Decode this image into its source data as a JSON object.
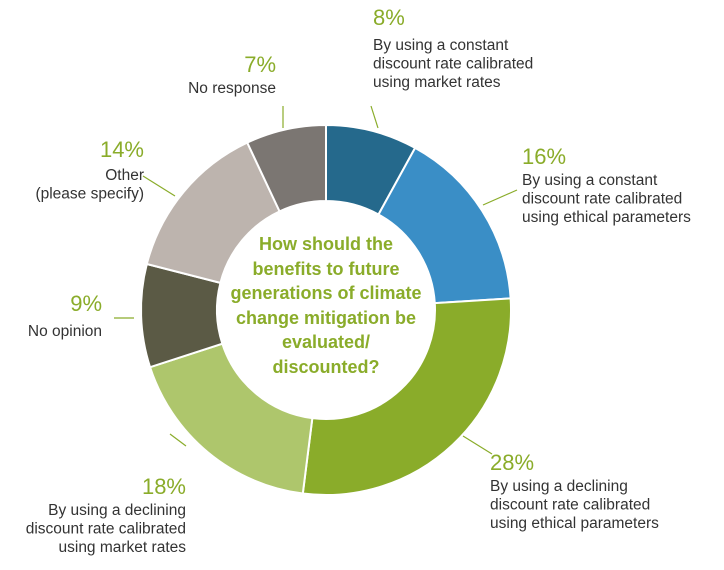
{
  "chart_data": {
    "type": "pie",
    "donut": true,
    "center_title": "How should the benefits to future generations of climate change mitigation be evaluated/ discounted?",
    "categories": [
      "By using a constant discount rate calibrated using market rates",
      "By using a constant discount rate calibrated using ethical parameters",
      "By using a declining discount rate calibrated using ethical parameters",
      "By using a declining discount rate calibrated using market rates",
      "No opinion",
      "Other (please specify)",
      "No response"
    ],
    "values": [
      8,
      16,
      28,
      18,
      9,
      14,
      7
    ],
    "labels": [
      "8%",
      "16%",
      "28%",
      "18%",
      "9%",
      "14%",
      "7%"
    ],
    "label_lines": [
      [
        "By using a constant",
        "discount rate calibrated",
        "using market rates"
      ],
      [
        "By using a constant",
        "discount rate calibrated",
        "using ethical parameters"
      ],
      [
        "By using a declining",
        "discount rate calibrated",
        "using ethical parameters"
      ],
      [
        "By using a declining",
        "discount rate calibrated",
        "using market rates"
      ],
      [
        "No opinion"
      ],
      [
        "Other",
        "(please specify)"
      ],
      [
        "No response"
      ]
    ],
    "colors": [
      "#25698c",
      "#3a8ec6",
      "#8aac2a",
      "#aec66c",
      "#5b5a45",
      "#bdb4ae",
      "#7b7672"
    ]
  }
}
